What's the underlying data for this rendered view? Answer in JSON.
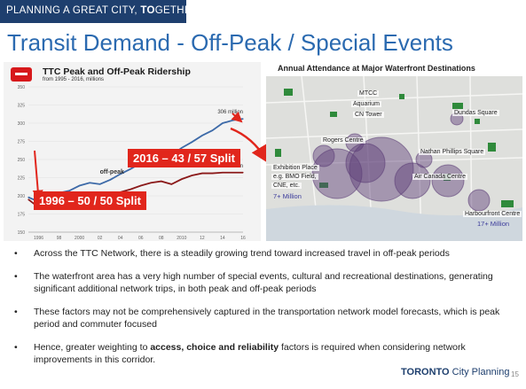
{
  "banner": {
    "text_a": "PLANNING A GREAT CITY, ",
    "text_b": "TO",
    "text_c": "GETHER"
  },
  "title": "Transit Demand - Off-Peak / Special Events",
  "ridership_chart": {
    "title": "TTC Peak and Off-Peak Ridership",
    "subtitle": "from 1995 - 2016, millions",
    "callout_2016": "2016 – 43 / 57 Split",
    "callout_1996": "1996 – 50 / 50 Split",
    "offpeak_label": "off-peak",
    "peak_label": "peak",
    "offpeak_end_label": "306 million",
    "peak_end_label": "232 million",
    "colors": {
      "offpeak": "#3d6aa8",
      "peak": "#8b1a1a",
      "callout": "#e1261c"
    }
  },
  "chart_data": {
    "type": "line",
    "title": "TTC Peak and Off-Peak Ridership",
    "x": [
      1995,
      1996,
      1997,
      1998,
      1999,
      2000,
      2001,
      2002,
      2003,
      2004,
      2005,
      2006,
      2007,
      2008,
      2009,
      2010,
      2011,
      2012,
      2013,
      2014,
      2015,
      2016
    ],
    "x_tick_labels": [
      "1996",
      "98",
      "2000",
      "02",
      "04",
      "06",
      "08",
      "2010",
      "12",
      "14",
      "16"
    ],
    "y_tick_labels": [
      "150",
      "175",
      "200",
      "225",
      "250",
      "275",
      "300",
      "325",
      "350"
    ],
    "ylim": [
      150,
      350
    ],
    "series": [
      {
        "name": "off-peak",
        "values": [
          198,
          192,
          198,
          204,
          207,
          214,
          218,
          216,
          222,
          230,
          237,
          245,
          250,
          255,
          256,
          266,
          274,
          283,
          290,
          300,
          304,
          306
        ]
      },
      {
        "name": "peak",
        "values": [
          195,
          184,
          185,
          190,
          192,
          199,
          202,
          197,
          201,
          205,
          209,
          214,
          218,
          220,
          216,
          223,
          228,
          231,
          231,
          232,
          232,
          232
        ]
      }
    ]
  },
  "map": {
    "heading": "Annual Attendance at Major Waterfront Destinations",
    "labels": {
      "mtcc": "MTCC",
      "aquarium": "Aquarium",
      "cn_tower": "CN Tower",
      "dundas": "Dundas Square",
      "rogers": "Rogers Centre",
      "nathan": "Nathan Phillips Square",
      "exhibition": "Exhibition Place",
      "exhibition_2": "e.g. BMO Field,",
      "exhibition_3": "CNE, etc.",
      "aircanada": "Air Canada Centre",
      "harbourfront": "Harbourfront Centre"
    },
    "notes": {
      "exhibition": "7+ Million",
      "harbourfront": "17+ Million"
    }
  },
  "bullets": [
    {
      "text": "Across the TTC Network, there is a steadily growing trend toward increased travel in off-peak periods"
    },
    {
      "text": "The waterfront area has a very high number of special events, cultural and recreational destinations, generating significant additional network trips, in both peak and off-peak periods"
    },
    {
      "text": "These factors may not be comprehensively captured in the transportation network model forecasts, which is peak period and commuter focused"
    },
    {
      "pre": "Hence, greater weighting to ",
      "bold": "access, choice and reliability",
      "post": " factors is required when considering network improvements in this corridor."
    }
  ],
  "bullet_glyph": "•",
  "footer": {
    "logo_bold": "TORONTO",
    "logo_rest": " City Planning",
    "page": "15"
  }
}
